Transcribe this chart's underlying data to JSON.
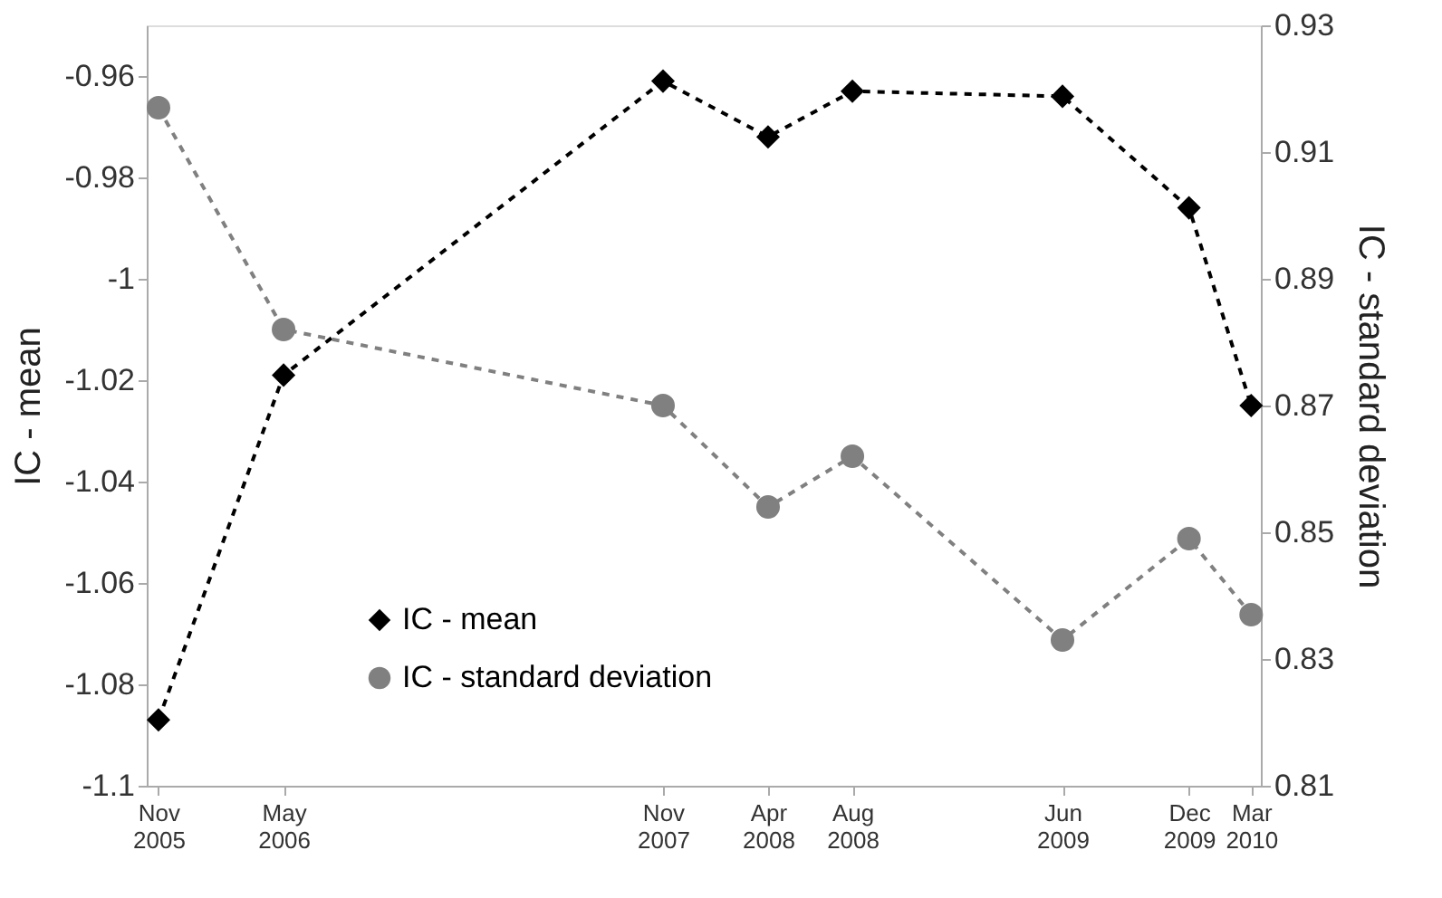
{
  "chart_data": {
    "type": "line",
    "ylabel": "IC - mean",
    "y2label": "IC - standard deviation",
    "x": [
      "2005-11",
      "2006-05",
      "2007-11",
      "2008-04",
      "2008-08",
      "2009-06",
      "2009-12",
      "2010-03"
    ],
    "xlim": [
      "2005-10-15",
      "2010-03-15"
    ],
    "xticks": [
      {
        "value": "2005-11",
        "label": "Nov 2005"
      },
      {
        "value": "2006-05",
        "label": "May 2006"
      },
      {
        "value": "2007-11",
        "label": "Nov 2007"
      },
      {
        "value": "2008-04",
        "label": "Apr 2008"
      },
      {
        "value": "2008-08",
        "label": "Aug 2008"
      },
      {
        "value": "2009-06",
        "label": "Jun 2009"
      },
      {
        "value": "2009-12",
        "label": "Dec 2009"
      },
      {
        "value": "2010-03",
        "label": "Mar 2010"
      }
    ],
    "ylim": [
      -1.1,
      -0.95
    ],
    "yticks": [
      -1.1,
      -1.08,
      -1.06,
      -1.04,
      -1.02,
      -1,
      -0.98,
      -0.96
    ],
    "y2lim": [
      0.81,
      0.93
    ],
    "y2ticks": [
      0.81,
      0.83,
      0.85,
      0.87,
      0.89,
      0.91,
      0.93
    ],
    "series": [
      {
        "name": "IC - mean",
        "color": "#000000",
        "marker": "diamond",
        "values": [
          -1.087,
          -1.019,
          -0.961,
          -0.972,
          -0.963,
          -0.964,
          -0.986,
          -1.025
        ]
      },
      {
        "name": "IC - standard deviation",
        "color": "#808080",
        "marker": "circle",
        "axis": "y2",
        "values": [
          0.917,
          0.882,
          0.87,
          0.854,
          0.862,
          0.833,
          0.849,
          0.837
        ]
      }
    ],
    "line_style": "dashed",
    "grid": false,
    "legend": "bottom left"
  }
}
